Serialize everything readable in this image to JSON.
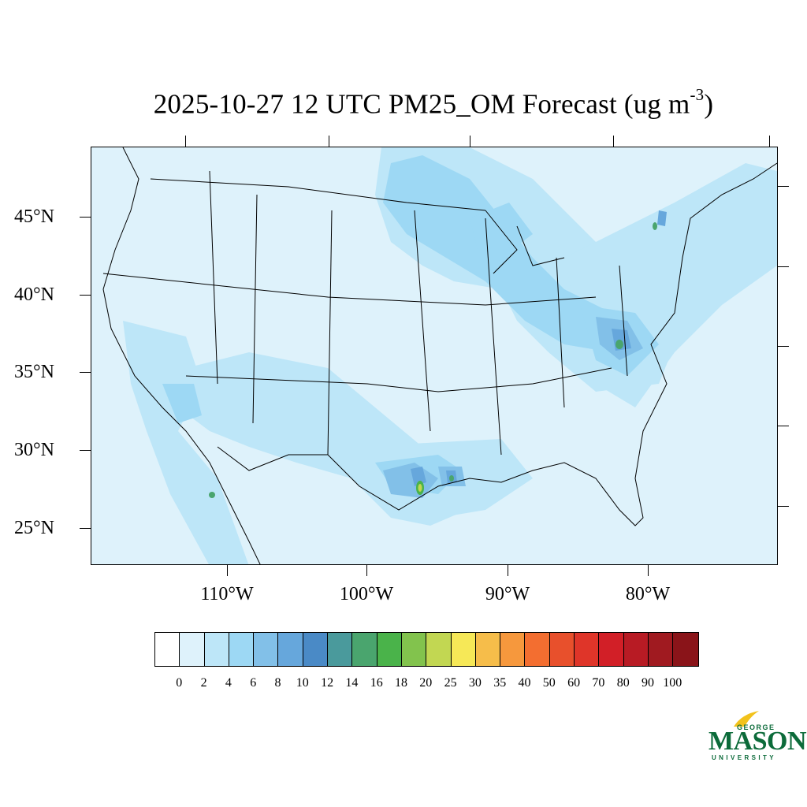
{
  "title": {
    "text": "2025-10-27 12 UTC PM25_OM Forecast (ug m",
    "superscript": "-3",
    "close": ")"
  },
  "map": {
    "background_color": "#def2fb",
    "latitude_labels": [
      "45°N",
      "40°N",
      "35°N",
      "30°N",
      "25°N"
    ],
    "longitude_labels": [
      "110°W",
      "100°W",
      "90°W",
      "80°W"
    ]
  },
  "colorbar": {
    "labels": [
      "0",
      "2",
      "4",
      "6",
      "8",
      "10",
      "12",
      "14",
      "16",
      "18",
      "20",
      "25",
      "30",
      "35",
      "40",
      "50",
      "60",
      "70",
      "80",
      "90",
      "100"
    ],
    "colors": [
      "#ffffff",
      "#def2fb",
      "#bde6f8",
      "#9dd8f4",
      "#82c0e8",
      "#66a7dc",
      "#4a8ac6",
      "#4a9a9c",
      "#4aa56e",
      "#4ab34a",
      "#82c34d",
      "#c2d752",
      "#f6e857",
      "#f6bd4a",
      "#f6983d",
      "#f36e30",
      "#e8502c",
      "#df3529",
      "#d21f27",
      "#b81b24",
      "#a01a20",
      "#8a1419"
    ]
  },
  "logo": {
    "line1": "GEORGE",
    "line2": "MASON",
    "line3": "UNIVERSITY",
    "brand_color": "#0c6b3a",
    "accent_color": "#f2c21b"
  }
}
